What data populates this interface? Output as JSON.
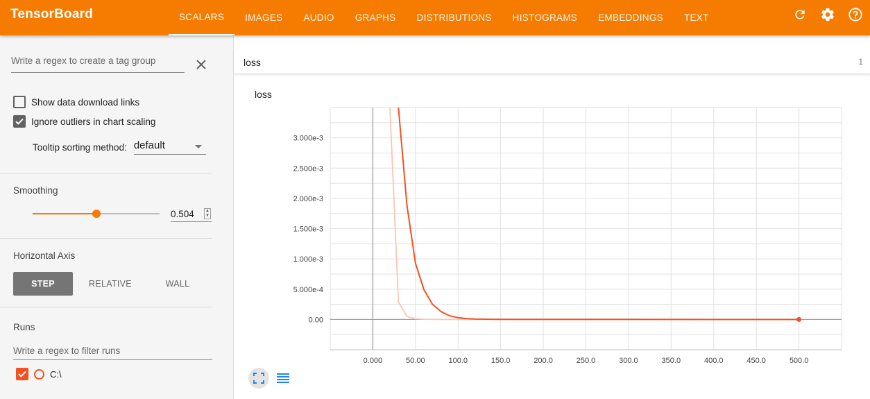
{
  "app": {
    "title": "TensorBoard"
  },
  "nav": {
    "tabs": [
      {
        "label": "SCALARS",
        "active": true
      },
      {
        "label": "IMAGES",
        "active": false
      },
      {
        "label": "AUDIO",
        "active": false
      },
      {
        "label": "GRAPHS",
        "active": false
      },
      {
        "label": "DISTRIBUTIONS",
        "active": false
      },
      {
        "label": "HISTOGRAMS",
        "active": false
      },
      {
        "label": "EMBEDDINGS",
        "active": false
      },
      {
        "label": "TEXT",
        "active": false
      }
    ],
    "icons": [
      "refresh-icon",
      "settings-icon",
      "help-icon"
    ]
  },
  "sidebar": {
    "tag_regex_placeholder": "Write a regex to create a tag group",
    "show_download_links": {
      "label": "Show data download links",
      "checked": false
    },
    "ignore_outliers": {
      "label": "Ignore outliers in chart scaling",
      "checked": true
    },
    "tooltip_sort": {
      "label": "Tooltip sorting method:",
      "value": "default"
    },
    "smoothing": {
      "title": "Smoothing",
      "value": "0.504",
      "level": 0.504
    },
    "horizontal_axis": {
      "title": "Horizontal Axis",
      "options": [
        {
          "label": "STEP",
          "active": true
        },
        {
          "label": "RELATIVE",
          "active": false
        },
        {
          "label": "WALL",
          "active": false
        }
      ]
    },
    "runs": {
      "title": "Runs",
      "filter_placeholder": "Write a regex to filter runs",
      "items": [
        {
          "label": "C:\\",
          "checked": true,
          "color": "#f4511e"
        }
      ]
    }
  },
  "main": {
    "tag_group": {
      "label": "loss",
      "count": "1"
    }
  },
  "colors": {
    "accent": "#f57c00",
    "run": "#f4511e",
    "run_raw": "#fbc5b6"
  },
  "chart_data": {
    "type": "line",
    "title": "loss",
    "xlabel": "",
    "ylabel": "",
    "xlim": [
      -50,
      550
    ],
    "ylim": [
      -0.0005,
      0.0035
    ],
    "x_ticks": [
      "0.000",
      "50.00",
      "100.0",
      "150.0",
      "200.0",
      "250.0",
      "300.0",
      "350.0",
      "400.0",
      "450.0",
      "500.0"
    ],
    "y_ticks": [
      "0.00",
      "5.000e-4",
      "1.000e-3",
      "1.500e-3",
      "2.000e-3",
      "2.500e-3",
      "3.000e-3"
    ],
    "y_tick_values": [
      0,
      0.0005,
      0.001,
      0.0015,
      0.002,
      0.0025,
      0.003
    ],
    "x_tick_values": [
      0,
      50,
      100,
      150,
      200,
      250,
      300,
      350,
      400,
      450,
      500
    ],
    "grid": true,
    "series": [
      {
        "name": "C:\\",
        "smoothed": true,
        "x": [
          30,
          40,
          50,
          60,
          70,
          80,
          90,
          100,
          110,
          120,
          140,
          160,
          200,
          300,
          400,
          500
        ],
        "y": [
          0.0035,
          0.00188,
          0.00093,
          0.00049,
          0.00025,
          0.00013,
          6e-05,
          3e-05,
          1.5e-05,
          8e-06,
          3e-06,
          1e-06,
          5e-07,
          3e-07,
          2e-07,
          1e-07
        ]
      },
      {
        "name": "C:\\",
        "smoothed": false,
        "x": [
          20,
          30,
          40,
          50,
          60,
          80,
          100,
          200,
          300,
          400,
          500
        ],
        "y": [
          0.0035,
          0.00029,
          5e-05,
          1e-05,
          3e-06,
          1e-06,
          5e-07,
          2e-07,
          1e-07,
          1e-07,
          1e-07
        ]
      }
    ]
  }
}
